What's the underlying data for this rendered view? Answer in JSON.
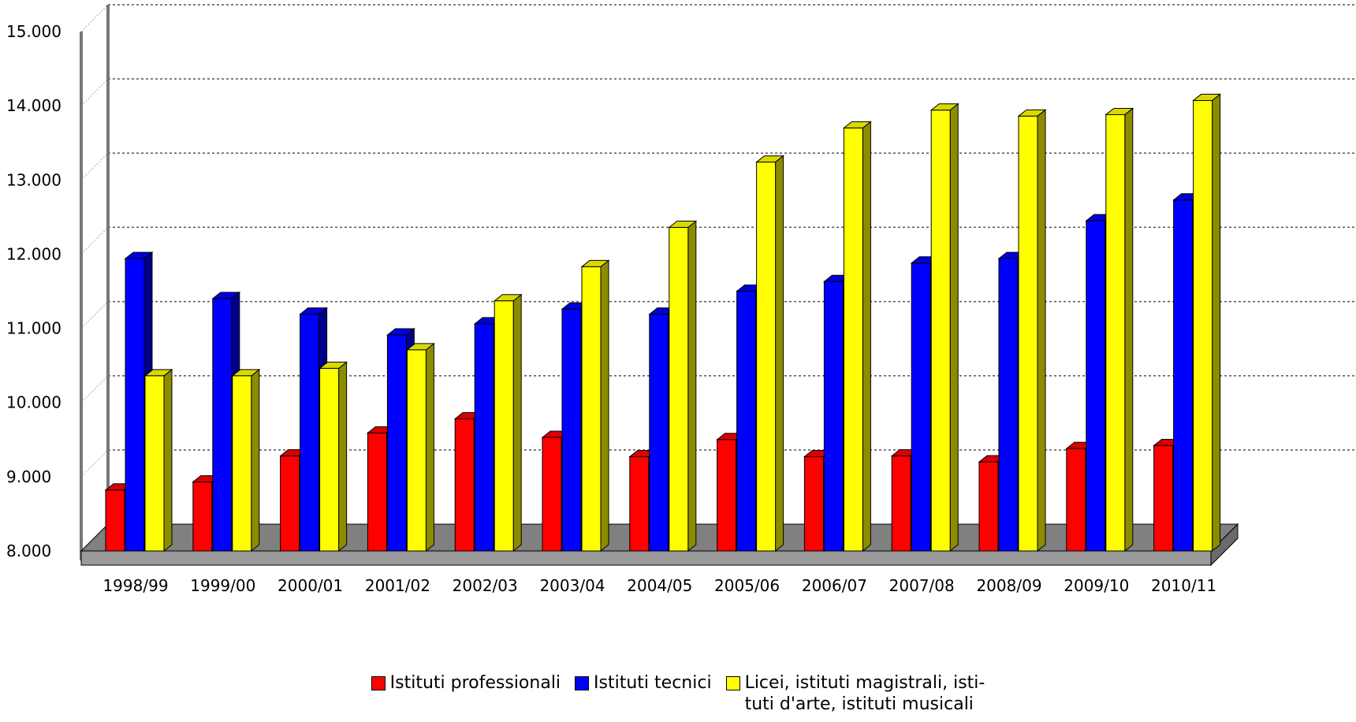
{
  "chart_data": {
    "type": "bar",
    "title": "",
    "xlabel": "",
    "ylabel": "",
    "categories": [
      "1998/99",
      "1999/00",
      "2000/01",
      "2001/02",
      "2002/03",
      "2003/04",
      "2004/05",
      "2005/06",
      "2006/07",
      "2007/08",
      "2008/09",
      "2009/10",
      "2010/11"
    ],
    "series": [
      {
        "name": "Istituti professionali",
        "color": "#ff0000",
        "values": [
          8820,
          8930,
          9280,
          9590,
          9780,
          9530,
          9270,
          9500,
          9270,
          9280,
          9200,
          9380,
          9420
        ]
      },
      {
        "name": "Istituti tecnici",
        "color": "#0000ff",
        "values": [
          11940,
          11400,
          11190,
          10910,
          11060,
          11260,
          11190,
          11500,
          11630,
          11880,
          11940,
          12450,
          12730
        ]
      },
      {
        "name": "Licei, istituti magistrali, isti-\ntuti d'arte, istituti musicali",
        "color": "#ffff00",
        "values": [
          10360,
          10360,
          10460,
          10710,
          11370,
          11830,
          12360,
          13240,
          13700,
          13940,
          13860,
          13880,
          14070
        ]
      }
    ],
    "ylim": [
      8000,
      15000
    ],
    "yticks": [
      "8.000",
      "9.000",
      "10.000",
      "11.000",
      "12.000",
      "13.000",
      "14.000",
      "15.000"
    ],
    "ytick_values": [
      8000,
      9000,
      10000,
      11000,
      12000,
      13000,
      14000,
      15000
    ],
    "grid": true,
    "legend_position": "bottom",
    "style": "3d-clustered-bar"
  }
}
